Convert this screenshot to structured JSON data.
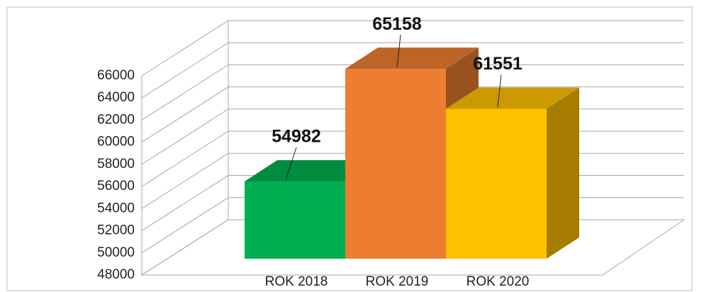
{
  "chart_data": {
    "type": "bar3d",
    "categories": [
      "ROK 2018",
      "ROK 2019",
      "ROK 2020"
    ],
    "values": [
      54982,
      65158,
      61551
    ],
    "colors": [
      "#00b050",
      "#ed7d31",
      "#ffc000"
    ],
    "ylim": [
      48000,
      66000
    ],
    "yticks": [
      48000,
      50000,
      52000,
      54000,
      56000,
      58000,
      60000,
      62000,
      64000,
      66000
    ],
    "grid": true
  }
}
